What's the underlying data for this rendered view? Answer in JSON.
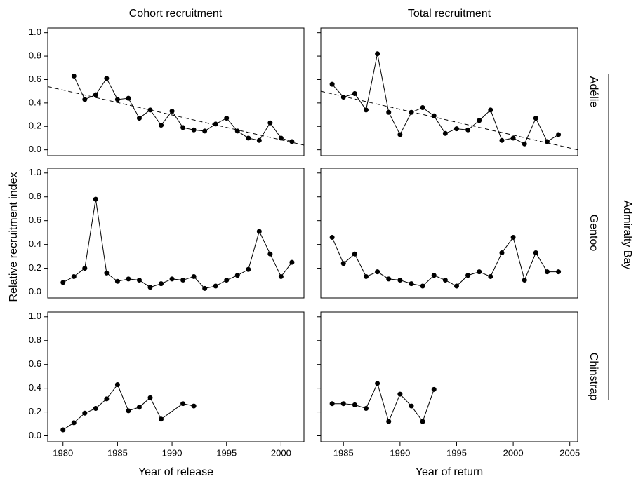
{
  "figure": {
    "column_titles": [
      "Cohort recruitment",
      "Total recruitment"
    ],
    "row_labels": [
      "Adélie",
      "Gentoo",
      "Chinstrap"
    ],
    "ylabel": "Relative recruitment index",
    "group_label": "Admiralty Bay"
  },
  "chart_data": [
    {
      "type": "line",
      "color": "#000000",
      "x": [
        1981,
        1982,
        1983,
        1984,
        1985,
        1986,
        1987,
        1988,
        1989,
        1990,
        1991,
        1992,
        1993,
        1994,
        1995,
        1996,
        1997,
        1998,
        1999,
        2000,
        2001
      ],
      "values": [
        0.63,
        0.43,
        0.47,
        0.61,
        0.43,
        0.44,
        0.27,
        0.34,
        0.21,
        0.33,
        0.19,
        0.17,
        0.16,
        0.22,
        0.27,
        0.16,
        0.1,
        0.08,
        0.23,
        0.1,
        0.07
      ],
      "trend": {
        "x": [
          1978.6,
          2002.1
        ],
        "values": [
          0.54,
          0.04
        ]
      },
      "xlim": [
        1978.6,
        2002.1
      ],
      "ylim": [
        -0.05,
        1.04
      ],
      "yticks": [
        {
          "value": 0,
          "label": "0.0"
        },
        {
          "value": 0.2,
          "label": "0.2"
        },
        {
          "value": 0.4,
          "label": "0.4"
        },
        {
          "value": 0.6,
          "label": "0.6"
        },
        {
          "value": 0.8,
          "label": "0.8"
        },
        {
          "value": 1,
          "label": "1.0"
        }
      ]
    },
    {
      "type": "line",
      "color": "#000000",
      "x": [
        1984,
        1985,
        1986,
        1987,
        1988,
        1989,
        1990,
        1991,
        1992,
        1993,
        1994,
        1995,
        1996,
        1997,
        1998,
        1999,
        2000,
        2001,
        2002,
        2003,
        2004
      ],
      "values": [
        0.56,
        0.45,
        0.48,
        0.34,
        0.82,
        0.32,
        0.13,
        0.32,
        0.36,
        0.29,
        0.14,
        0.18,
        0.17,
        0.25,
        0.34,
        0.08,
        0.1,
        0.05,
        0.27,
        0.07,
        0.13
      ],
      "trend": {
        "x": [
          1983,
          2005.7
        ],
        "values": [
          0.5,
          0.0
        ]
      },
      "xlim": [
        1983,
        2005.7
      ],
      "ylim": [
        -0.05,
        1.04
      ],
      "yticks": [
        0,
        0.2,
        0.4,
        0.6,
        0.8,
        1
      ]
    },
    {
      "type": "line",
      "color": "#000000",
      "x": [
        1980,
        1981,
        1982,
        1983,
        1984,
        1985,
        1986,
        1987,
        1988,
        1989,
        1990,
        1991,
        1992,
        1993,
        1994,
        1995,
        1996,
        1997,
        1998,
        1999,
        2000,
        2001
      ],
      "values": [
        0.08,
        0.13,
        0.2,
        0.78,
        0.16,
        0.09,
        0.11,
        0.1,
        0.04,
        0.07,
        0.11,
        0.1,
        0.13,
        0.03,
        0.05,
        0.1,
        0.14,
        0.19,
        0.51,
        0.32,
        0.13,
        0.25
      ],
      "xlim": [
        1978.6,
        2002.1
      ],
      "ylim": [
        -0.05,
        1.04
      ],
      "yticks": [
        {
          "value": 0,
          "label": "0.0"
        },
        {
          "value": 0.2,
          "label": "0.2"
        },
        {
          "value": 0.4,
          "label": "0.4"
        },
        {
          "value": 0.6,
          "label": "0.6"
        },
        {
          "value": 0.8,
          "label": "0.8"
        },
        {
          "value": 1,
          "label": "1.0"
        }
      ]
    },
    {
      "type": "line",
      "color": "#000000",
      "x": [
        1984,
        1985,
        1986,
        1987,
        1988,
        1989,
        1990,
        1991,
        1992,
        1993,
        1994,
        1995,
        1996,
        1997,
        1998,
        1999,
        2000,
        2001,
        2002,
        2003,
        2004
      ],
      "values": [
        0.46,
        0.24,
        0.32,
        0.13,
        0.17,
        0.11,
        0.1,
        0.07,
        0.05,
        0.14,
        0.1,
        0.05,
        0.14,
        0.17,
        0.13,
        0.33,
        0.46,
        0.1,
        0.33,
        0.17,
        0.17
      ],
      "xlim": [
        1983,
        2005.7
      ],
      "ylim": [
        -0.05,
        1.04
      ],
      "yticks": [
        0,
        0.2,
        0.4,
        0.6,
        0.8,
        1
      ]
    },
    {
      "type": "line",
      "color": "#000000",
      "x": [
        1980,
        1981,
        1982,
        1983,
        1984,
        1985,
        1986,
        1987,
        1988,
        1989,
        1991,
        1992
      ],
      "values": [
        0.05,
        0.11,
        0.19,
        0.23,
        0.31,
        0.43,
        0.21,
        0.24,
        0.32,
        0.14,
        0.27,
        0.25
      ],
      "xlim": [
        1978.6,
        2002.1
      ],
      "ylim": [
        -0.05,
        1.04
      ],
      "xlabel": "Year of release",
      "xticks": [
        1980,
        1985,
        1990,
        1995,
        2000
      ],
      "yticks": [
        {
          "value": 0,
          "label": "0.0"
        },
        {
          "value": 0.2,
          "label": "0.2"
        },
        {
          "value": 0.4,
          "label": "0.4"
        },
        {
          "value": 0.6,
          "label": "0.6"
        },
        {
          "value": 0.8,
          "label": "0.8"
        },
        {
          "value": 1,
          "label": "1.0"
        }
      ]
    },
    {
      "type": "line",
      "color": "#000000",
      "x": [
        1984,
        1985,
        1986,
        1987,
        1988,
        1989,
        1990,
        1991,
        1992,
        1993
      ],
      "values": [
        0.27,
        0.27,
        0.26,
        0.23,
        0.44,
        0.12,
        0.35,
        0.25,
        0.12,
        0.39
      ],
      "xlim": [
        1983,
        2005.7
      ],
      "ylim": [
        -0.05,
        1.04
      ],
      "xlabel": "Year of return",
      "xticks": [
        1985,
        1990,
        1995,
        2000,
        2005
      ],
      "yticks": [
        0,
        0.2,
        0.4,
        0.6,
        0.8,
        1
      ]
    }
  ]
}
